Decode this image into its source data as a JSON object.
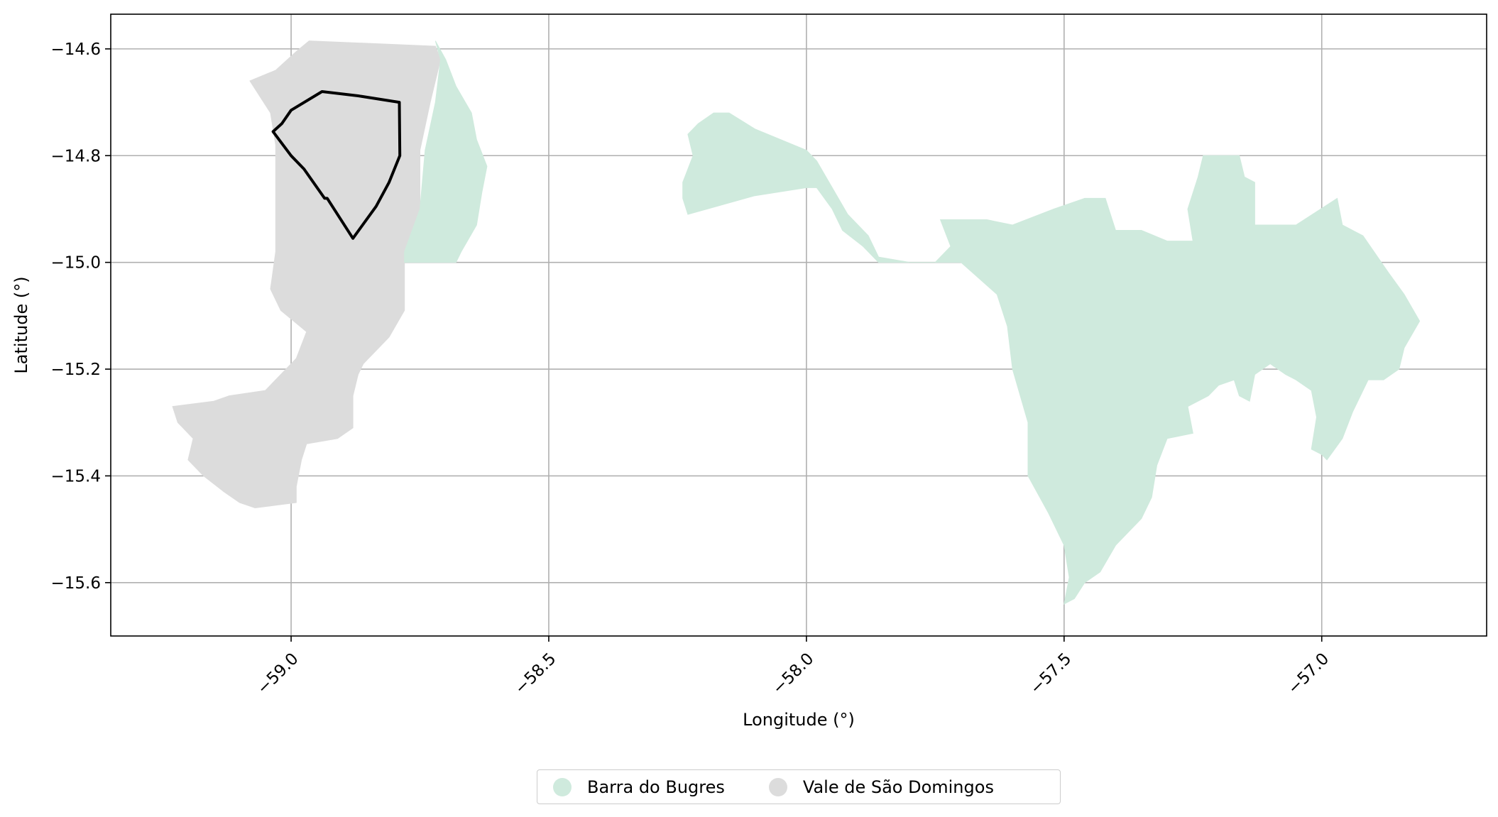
{
  "map": {
    "xlabel": "Longitude (°)",
    "ylabel": "Latitude (°)",
    "xlim": [
      -59.35,
      -56.68
    ],
    "ylim": [
      -15.7,
      -14.535
    ],
    "xticks": [
      -59.0,
      -58.5,
      -58.0,
      -57.5,
      -57.0
    ],
    "xtick_labels": [
      "−59.0",
      "−58.5",
      "−58.0",
      "−57.5",
      "−57.0"
    ],
    "yticks": [
      -14.6,
      -14.8,
      -15.0,
      -15.2,
      -15.4,
      -15.6
    ],
    "ytick_labels": [
      "−14.6",
      "−14.8",
      "−15.0",
      "−15.2",
      "−15.4",
      "−15.6"
    ],
    "grid": true,
    "legend_position": "bottom-center",
    "colors": {
      "barra": "#cfeadd",
      "vale": "#dcdcdc",
      "outline": "#000000",
      "grid": "#b0b0b0"
    },
    "regions": [
      {
        "name": "Vale de São Domingos",
        "color": "#dcdcdc",
        "coords": [
          [
            -59.08,
            -14.66
          ],
          [
            -59.03,
            -14.64
          ],
          [
            -58.99,
            -14.605
          ],
          [
            -58.965,
            -14.585
          ],
          [
            -58.72,
            -14.595
          ],
          [
            -58.71,
            -14.62
          ],
          [
            -58.73,
            -14.7
          ],
          [
            -58.75,
            -14.79
          ],
          [
            -58.75,
            -14.9
          ],
          [
            -58.78,
            -14.98
          ],
          [
            -58.78,
            -15.07
          ],
          [
            -58.78,
            -15.09
          ],
          [
            -58.81,
            -15.14
          ],
          [
            -58.84,
            -15.17
          ],
          [
            -58.86,
            -15.19
          ],
          [
            -58.87,
            -15.21
          ],
          [
            -58.88,
            -15.25
          ],
          [
            -58.88,
            -15.31
          ],
          [
            -58.91,
            -15.33
          ],
          [
            -58.97,
            -15.34
          ],
          [
            -58.98,
            -15.37
          ],
          [
            -58.99,
            -15.42
          ],
          [
            -58.99,
            -15.45
          ],
          [
            -59.03,
            -15.455
          ],
          [
            -59.07,
            -15.46
          ],
          [
            -59.1,
            -15.45
          ],
          [
            -59.13,
            -15.43
          ],
          [
            -59.17,
            -15.4
          ],
          [
            -59.2,
            -15.37
          ],
          [
            -59.19,
            -15.33
          ],
          [
            -59.22,
            -15.3
          ],
          [
            -59.23,
            -15.27
          ],
          [
            -59.15,
            -15.26
          ],
          [
            -59.12,
            -15.25
          ],
          [
            -59.05,
            -15.24
          ],
          [
            -59.02,
            -15.21
          ],
          [
            -58.99,
            -15.18
          ],
          [
            -58.97,
            -15.13
          ],
          [
            -59.02,
            -15.09
          ],
          [
            -59.04,
            -15.05
          ],
          [
            -59.03,
            -14.98
          ],
          [
            -59.03,
            -14.92
          ],
          [
            -59.03,
            -14.85
          ],
          [
            -59.03,
            -14.78
          ],
          [
            -59.04,
            -14.72
          ]
        ]
      },
      {
        "name": "Barra do Bugres",
        "color": "#cfeadd",
        "coords": [
          [
            -58.72,
            -14.585
          ],
          [
            -58.7,
            -14.62
          ],
          [
            -58.68,
            -14.67
          ],
          [
            -58.65,
            -14.72
          ],
          [
            -58.64,
            -14.77
          ],
          [
            -58.62,
            -14.82
          ],
          [
            -58.63,
            -14.87
          ],
          [
            -58.64,
            -14.93
          ],
          [
            -58.67,
            -14.98
          ],
          [
            -58.68,
            -15.0
          ],
          [
            -58.78,
            -15.0
          ],
          [
            -58.78,
            -14.98
          ],
          [
            -58.75,
            -14.9
          ],
          [
            -58.74,
            -14.79
          ],
          [
            -58.72,
            -14.7
          ],
          [
            -58.71,
            -14.62
          ]
        ]
      },
      {
        "name": "Barra do Bugres",
        "color": "#cfeadd",
        "coords": [
          [
            -58.23,
            -14.91
          ],
          [
            -58.1,
            -14.875
          ],
          [
            -58.0,
            -14.86
          ],
          [
            -57.98,
            -14.86
          ],
          [
            -57.95,
            -14.9
          ],
          [
            -57.93,
            -14.94
          ],
          [
            -57.89,
            -14.97
          ],
          [
            -57.86,
            -15.0
          ],
          [
            -57.75,
            -15.0
          ],
          [
            -57.72,
            -14.97
          ],
          [
            -57.74,
            -14.92
          ],
          [
            -57.65,
            -14.92
          ],
          [
            -57.6,
            -14.93
          ],
          [
            -57.52,
            -14.9
          ],
          [
            -57.46,
            -14.88
          ],
          [
            -57.42,
            -14.88
          ],
          [
            -57.4,
            -14.94
          ],
          [
            -57.35,
            -14.94
          ],
          [
            -57.3,
            -14.96
          ],
          [
            -57.25,
            -14.96
          ],
          [
            -57.26,
            -14.9
          ],
          [
            -57.24,
            -14.84
          ],
          [
            -57.23,
            -14.8
          ],
          [
            -57.16,
            -14.8
          ],
          [
            -57.15,
            -14.84
          ],
          [
            -57.13,
            -14.85
          ],
          [
            -57.13,
            -14.93
          ],
          [
            -57.05,
            -14.93
          ],
          [
            -56.97,
            -14.88
          ],
          [
            -56.96,
            -14.93
          ],
          [
            -56.92,
            -14.95
          ],
          [
            -56.87,
            -15.02
          ],
          [
            -56.84,
            -15.06
          ],
          [
            -56.81,
            -15.11
          ],
          [
            -56.84,
            -15.16
          ],
          [
            -56.85,
            -15.2
          ],
          [
            -56.88,
            -15.22
          ],
          [
            -56.91,
            -15.22
          ],
          [
            -56.94,
            -15.28
          ],
          [
            -56.96,
            -15.33
          ],
          [
            -56.99,
            -15.37
          ],
          [
            -57.0,
            -15.36
          ],
          [
            -57.02,
            -15.35
          ],
          [
            -57.01,
            -15.29
          ],
          [
            -57.02,
            -15.24
          ],
          [
            -57.05,
            -15.22
          ],
          [
            -57.07,
            -15.21
          ],
          [
            -57.1,
            -15.19
          ],
          [
            -57.13,
            -15.21
          ],
          [
            -57.14,
            -15.26
          ],
          [
            -57.16,
            -15.25
          ],
          [
            -57.17,
            -15.22
          ],
          [
            -57.2,
            -15.23
          ],
          [
            -57.22,
            -15.25
          ],
          [
            -57.26,
            -15.27
          ],
          [
            -57.25,
            -15.32
          ],
          [
            -57.3,
            -15.33
          ],
          [
            -57.32,
            -15.38
          ],
          [
            -57.33,
            -15.44
          ],
          [
            -57.35,
            -15.48
          ],
          [
            -57.38,
            -15.51
          ],
          [
            -57.4,
            -15.53
          ],
          [
            -57.43,
            -15.58
          ],
          [
            -57.46,
            -15.6
          ],
          [
            -57.48,
            -15.63
          ],
          [
            -57.5,
            -15.64
          ],
          [
            -57.49,
            -15.59
          ],
          [
            -57.5,
            -15.53
          ],
          [
            -57.53,
            -15.47
          ],
          [
            -57.57,
            -15.4
          ],
          [
            -57.57,
            -15.3
          ],
          [
            -57.6,
            -15.2
          ],
          [
            -57.61,
            -15.12
          ],
          [
            -57.63,
            -15.06
          ],
          [
            -57.7,
            -15.0
          ],
          [
            -57.8,
            -15.0
          ],
          [
            -57.86,
            -14.99
          ],
          [
            -57.88,
            -14.95
          ],
          [
            -57.92,
            -14.91
          ],
          [
            -57.95,
            -14.86
          ],
          [
            -57.98,
            -14.81
          ],
          [
            -58.0,
            -14.79
          ],
          [
            -58.1,
            -14.75
          ],
          [
            -58.15,
            -14.72
          ],
          [
            -58.18,
            -14.72
          ],
          [
            -58.21,
            -14.74
          ],
          [
            -58.23,
            -14.76
          ],
          [
            -58.22,
            -14.8
          ],
          [
            -58.24,
            -14.85
          ],
          [
            -58.24,
            -14.88
          ]
        ]
      }
    ],
    "outline": {
      "coords": [
        [
          -59.0,
          -14.715
        ],
        [
          -58.94,
          -14.68
        ],
        [
          -58.87,
          -14.688
        ],
        [
          -58.79,
          -14.7
        ],
        [
          -58.789,
          -14.8
        ],
        [
          -58.81,
          -14.85
        ],
        [
          -58.835,
          -14.895
        ],
        [
          -58.88,
          -14.955
        ],
        [
          -58.93,
          -14.88
        ],
        [
          -58.935,
          -14.88
        ],
        [
          -58.975,
          -14.825
        ],
        [
          -59.0,
          -14.8
        ],
        [
          -59.035,
          -14.755
        ],
        [
          -59.018,
          -14.74
        ]
      ]
    },
    "legend": [
      {
        "label": "Barra do Bugres",
        "color": "#cfeadd"
      },
      {
        "label": "Vale de São Domingos",
        "color": "#dcdcdc"
      }
    ]
  }
}
